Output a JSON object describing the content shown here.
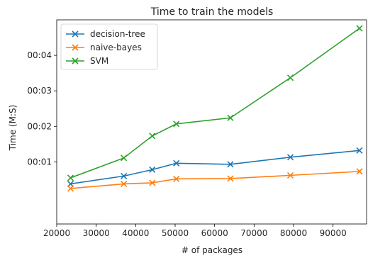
{
  "chart_data": {
    "type": "line",
    "title": "Time to train the models",
    "xlabel": "# of packages",
    "ylabel": "Time (M:S)",
    "xlim": [
      20000,
      98500
    ],
    "ylim_seconds": [
      -0.75,
      5.0
    ],
    "x_ticks": [
      20000,
      30000,
      40000,
      50000,
      60000,
      70000,
      80000,
      90000
    ],
    "x_tick_labels": [
      "20000",
      "30000",
      "40000",
      "50000",
      "60000",
      "70000",
      "80000",
      "90000"
    ],
    "y_ticks_seconds": [
      1,
      2,
      3,
      4
    ],
    "y_tick_labels": [
      "00:01",
      "00:02",
      "00:03",
      "00:04"
    ],
    "grid": false,
    "legend_position": "top-left",
    "marker": "x",
    "x": [
      23500,
      37000,
      44200,
      50300,
      64000,
      79200,
      96700
    ],
    "series": [
      {
        "name": "decision-tree",
        "color": "#1f77b4",
        "values": [
          0.38,
          0.6,
          0.78,
          0.96,
          0.93,
          1.13,
          1.32
        ]
      },
      {
        "name": "naive-bayes",
        "color": "#ff7f0e",
        "values": [
          0.25,
          0.38,
          0.41,
          0.52,
          0.53,
          0.62,
          0.73
        ]
      },
      {
        "name": "SVM",
        "color": "#2ca02c",
        "values": [
          0.55,
          1.11,
          1.73,
          2.07,
          2.24,
          3.37,
          4.76
        ]
      }
    ]
  }
}
